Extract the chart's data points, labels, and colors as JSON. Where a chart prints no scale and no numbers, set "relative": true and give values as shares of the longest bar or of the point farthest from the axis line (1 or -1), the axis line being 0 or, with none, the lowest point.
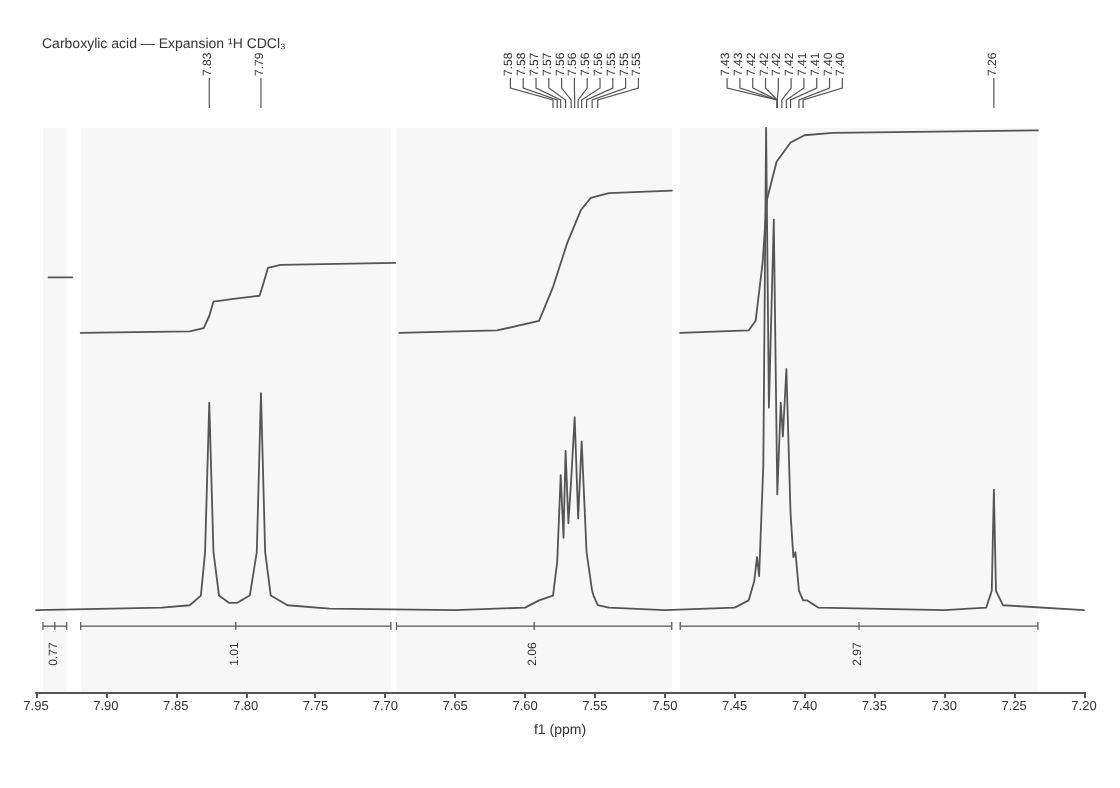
{
  "chart_data": {
    "type": "line",
    "title": "Carboxylic acid — Expansion ¹H CDCl₃",
    "xlabel": "f1 (ppm)",
    "relative": true,
    "grid": false,
    "marker": "none",
    "line_style": "solid",
    "xlim": [
      7.95,
      7.2
    ],
    "bands": [
      {
        "axis": "x",
        "from": 7.945,
        "to": 7.928,
        "label": "0.77"
      },
      {
        "axis": "x",
        "from": 7.918,
        "to": 7.696,
        "label": "1.01"
      },
      {
        "axis": "x",
        "from": 7.692,
        "to": 7.495,
        "label": "2.06"
      },
      {
        "axis": "x",
        "from": 7.489,
        "to": 7.233,
        "label": "2.97"
      }
    ],
    "xticks": [
      {
        "value": 7.95,
        "label": "7.95"
      },
      {
        "value": 7.9,
        "label": "7.90"
      },
      {
        "value": 7.85,
        "label": "7.85"
      },
      {
        "value": 7.8,
        "label": "7.80"
      },
      {
        "value": 7.75,
        "label": "7.75"
      },
      {
        "value": 7.7,
        "label": "7.70"
      },
      {
        "value": 7.65,
        "label": "7.65"
      },
      {
        "value": 7.6,
        "label": "7.60"
      },
      {
        "value": 7.55,
        "label": "7.55"
      },
      {
        "value": 7.5,
        "label": "7.50"
      },
      {
        "value": 7.45,
        "label": "7.45"
      },
      {
        "value": 7.4,
        "label": "7.40"
      },
      {
        "value": 7.35,
        "label": "7.35"
      },
      {
        "value": 7.3,
        "label": "7.30"
      },
      {
        "value": 7.25,
        "label": "7.25"
      },
      {
        "value": 7.2,
        "label": "7.20"
      }
    ],
    "series": [
      {
        "color": "#555555",
        "x": [
          7.95,
          7.86,
          7.84,
          7.832,
          7.829,
          7.826,
          7.823,
          7.819,
          7.812,
          7.806,
          7.797,
          7.792,
          7.789,
          7.786,
          7.782,
          7.77,
          7.74,
          7.65,
          7.6,
          7.59,
          7.58,
          7.577,
          7.5745,
          7.5725,
          7.571,
          7.569,
          7.567,
          7.5645,
          7.562,
          7.5595,
          7.556,
          7.552,
          7.551,
          7.548,
          7.54,
          7.5,
          7.45,
          7.44,
          7.436,
          7.434,
          7.4325,
          7.4295,
          7.4275,
          7.4255,
          7.422,
          7.4195,
          7.417,
          7.4155,
          7.413,
          7.41,
          7.408,
          7.4065,
          7.404,
          7.401,
          7.398,
          7.39,
          7.3,
          7.27,
          7.266,
          7.2645,
          7.263,
          7.258,
          7.2
        ],
        "values": [
          0,
          0.005,
          0.01,
          0.03,
          0.12,
          0.43,
          0.12,
          0.03,
          0.015,
          0.015,
          0.03,
          0.12,
          0.45,
          0.12,
          0.03,
          0.01,
          0.003,
          0,
          0.005,
          0.02,
          0.03,
          0.1,
          0.28,
          0.15,
          0.33,
          0.18,
          0.27,
          0.4,
          0.19,
          0.35,
          0.12,
          0.04,
          0.03,
          0.01,
          0.005,
          0,
          0.005,
          0.02,
          0.06,
          0.11,
          0.07,
          0.3,
          1.0,
          0.42,
          0.81,
          0.24,
          0.43,
          0.36,
          0.5,
          0.2,
          0.11,
          0.12,
          0.04,
          0.02,
          0.02,
          0.005,
          0,
          0.005,
          0.04,
          0.25,
          0.04,
          0.01,
          0
        ]
      },
      {
        "color": "#555555",
        "x": [
          7.941,
          7.924
        ],
        "values": [
          0.69,
          0.69
        ]
      },
      {
        "color": "#555555",
        "x": [
          7.918,
          7.84,
          7.83,
          7.826,
          7.823,
          7.81,
          7.79,
          7.787,
          7.784,
          7.775,
          7.693
        ],
        "values": [
          0.575,
          0.578,
          0.585,
          0.61,
          0.64,
          0.645,
          0.652,
          0.68,
          0.71,
          0.716,
          0.72
        ]
      },
      {
        "color": "#555555",
        "x": [
          7.69,
          7.62,
          7.59,
          7.58,
          7.57,
          7.56,
          7.553,
          7.54,
          7.495
        ],
        "values": [
          0.575,
          0.58,
          0.6,
          0.67,
          0.76,
          0.83,
          0.855,
          0.865,
          0.87
        ]
      },
      {
        "color": "#555555",
        "x": [
          7.489,
          7.44,
          7.435,
          7.43,
          7.427,
          7.42,
          7.41,
          7.4,
          7.38,
          7.233
        ],
        "values": [
          0.575,
          0.58,
          0.6,
          0.72,
          0.85,
          0.93,
          0.97,
          0.985,
          0.99,
          0.995
        ]
      }
    ],
    "annotations": [
      {
        "text": "7.83",
        "x": 7.826
      },
      {
        "text": "7.79",
        "x": 7.789
      },
      {
        "text": "7.58",
        "x": 7.58
      },
      {
        "text": "7.58",
        "x": 7.577
      },
      {
        "text": "7.57",
        "x": 7.5745
      },
      {
        "text": "7.57",
        "x": 7.571
      },
      {
        "text": "7.56",
        "x": 7.567
      },
      {
        "text": "7.56",
        "x": 7.5645
      },
      "7.56",
      {
        "text": "7.56",
        "x": 7.5595
      },
      {
        "text": "7.55",
        "x": 7.556
      },
      {
        "text": "7.55",
        "x": 7.552
      },
      {
        "text": "7.55",
        "x": 7.548
      },
      "7.43",
      "7.43",
      "7.42",
      "7.42",
      {
        "text": "7.42",
        "x": 7.4195
      },
      "7.42",
      {
        "text": "7.41",
        "x": 7.413
      },
      {
        "text": "7.41",
        "x": 7.41
      },
      {
        "text": "7.40",
        "x": 7.404
      },
      {
        "text": "7.40",
        "x": 7.401
      },
      {
        "text": "7.26",
        "x": 7.2645
      }
    ]
  }
}
